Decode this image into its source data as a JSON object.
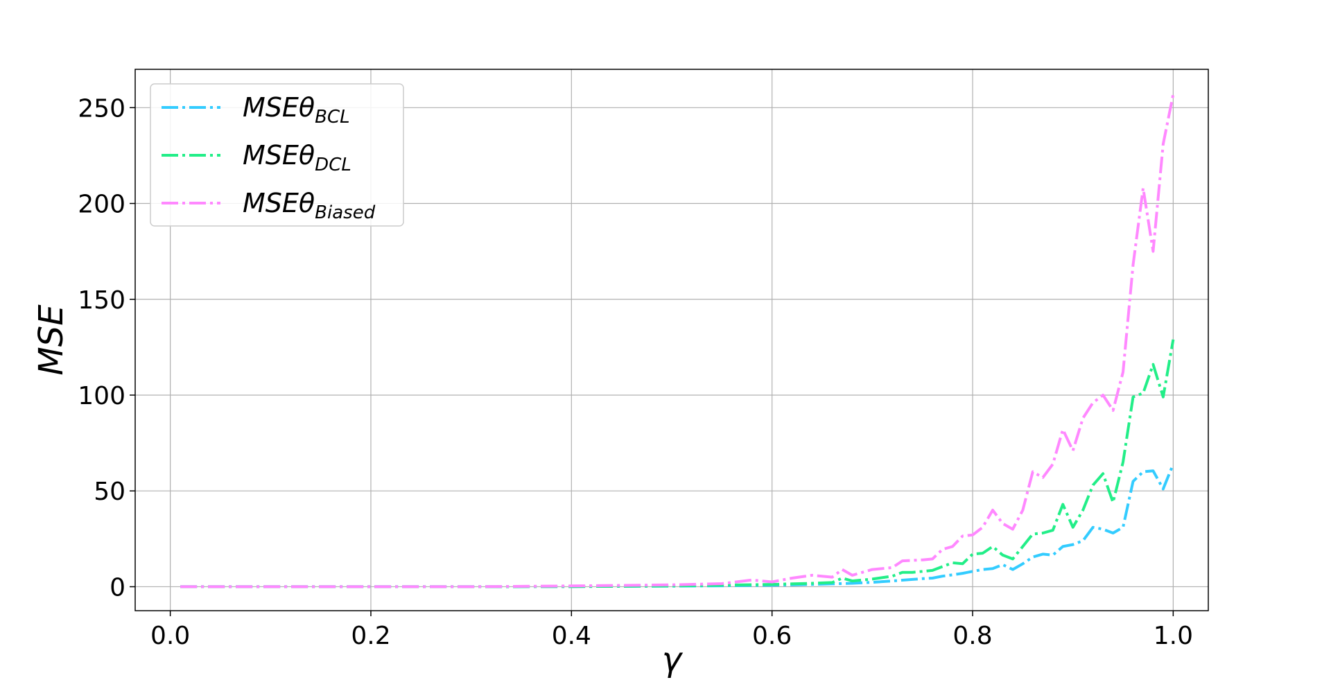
{
  "chart_data": {
    "type": "line",
    "title": "",
    "xlabel": "γ",
    "ylabel": "MSE",
    "xlim": [
      -0.035,
      1.035
    ],
    "ylim": [
      -12.5,
      270
    ],
    "xticks": [
      0.0,
      0.2,
      0.4,
      0.6,
      0.8,
      1.0
    ],
    "xtick_labels": [
      "0.0",
      "0.2",
      "0.4",
      "0.6",
      "0.8",
      "1.0"
    ],
    "yticks": [
      0,
      50,
      100,
      150,
      200,
      250
    ],
    "ytick_labels": [
      "0",
      "50",
      "100",
      "150",
      "200",
      "250"
    ],
    "grid": true,
    "legend_position": "top-left",
    "line_style": "dash-dot",
    "series": [
      {
        "name": "MSEθ",
        "subscript": "BCL",
        "color": "#33ccff",
        "points": [
          [
            0.01,
            0
          ],
          [
            0.1,
            0
          ],
          [
            0.2,
            0
          ],
          [
            0.3,
            0
          ],
          [
            0.4,
            0.1
          ],
          [
            0.45,
            0.2
          ],
          [
            0.5,
            0.3
          ],
          [
            0.55,
            0.5
          ],
          [
            0.6,
            0.8
          ],
          [
            0.62,
            1.0
          ],
          [
            0.64,
            1.2
          ],
          [
            0.66,
            1.5
          ],
          [
            0.68,
            1.8
          ],
          [
            0.7,
            2.3
          ],
          [
            0.72,
            3.0
          ],
          [
            0.74,
            3.8
          ],
          [
            0.75,
            4.2
          ],
          [
            0.76,
            4.5
          ],
          [
            0.77,
            5.5
          ],
          [
            0.78,
            6.2
          ],
          [
            0.79,
            7.0
          ],
          [
            0.8,
            8.0
          ],
          [
            0.81,
            9.0
          ],
          [
            0.82,
            9.5
          ],
          [
            0.83,
            11.5
          ],
          [
            0.84,
            9.0
          ],
          [
            0.85,
            12.0
          ],
          [
            0.86,
            15.5
          ],
          [
            0.87,
            17.0
          ],
          [
            0.88,
            16.5
          ],
          [
            0.89,
            21.0
          ],
          [
            0.9,
            22.0
          ],
          [
            0.91,
            24.0
          ],
          [
            0.92,
            31.0
          ],
          [
            0.93,
            30.0
          ],
          [
            0.94,
            28.0
          ],
          [
            0.95,
            31.0
          ],
          [
            0.96,
            55.0
          ],
          [
            0.97,
            60.0
          ],
          [
            0.98,
            60.5
          ],
          [
            0.99,
            51.0
          ],
          [
            1.0,
            64.0
          ]
        ]
      },
      {
        "name": "MSEθ",
        "subscript": "DCL",
        "color": "#22ee88",
        "points": [
          [
            0.01,
            0
          ],
          [
            0.1,
            0
          ],
          [
            0.2,
            0
          ],
          [
            0.3,
            0
          ],
          [
            0.4,
            0.1
          ],
          [
            0.45,
            0.2
          ],
          [
            0.5,
            0.4
          ],
          [
            0.55,
            0.8
          ],
          [
            0.6,
            1.2
          ],
          [
            0.62,
            1.5
          ],
          [
            0.64,
            1.8
          ],
          [
            0.66,
            2.2
          ],
          [
            0.67,
            4.5
          ],
          [
            0.68,
            3.0
          ],
          [
            0.7,
            4.0
          ],
          [
            0.72,
            5.5
          ],
          [
            0.73,
            7.5
          ],
          [
            0.74,
            7.5
          ],
          [
            0.75,
            8.0
          ],
          [
            0.76,
            8.5
          ],
          [
            0.77,
            10.5
          ],
          [
            0.78,
            12.5
          ],
          [
            0.79,
            12.0
          ],
          [
            0.8,
            17.0
          ],
          [
            0.81,
            17.5
          ],
          [
            0.82,
            21.0
          ],
          [
            0.83,
            16.5
          ],
          [
            0.84,
            14.5
          ],
          [
            0.85,
            21.0
          ],
          [
            0.86,
            27.5
          ],
          [
            0.87,
            28.0
          ],
          [
            0.88,
            29.5
          ],
          [
            0.89,
            43.0
          ],
          [
            0.9,
            31.0
          ],
          [
            0.91,
            40.0
          ],
          [
            0.92,
            53.0
          ],
          [
            0.93,
            59.0
          ],
          [
            0.94,
            44.0
          ],
          [
            0.95,
            65.0
          ],
          [
            0.96,
            99.0
          ],
          [
            0.97,
            101.0
          ],
          [
            0.98,
            116.0
          ],
          [
            0.99,
            99.0
          ],
          [
            1.0,
            129.0
          ]
        ]
      },
      {
        "name": "MSEθ",
        "subscript": "Biased",
        "color": "#ff88ff",
        "points": [
          [
            0.01,
            0
          ],
          [
            0.1,
            0
          ],
          [
            0.2,
            0
          ],
          [
            0.3,
            0
          ],
          [
            0.35,
            0.2
          ],
          [
            0.4,
            0.4
          ],
          [
            0.45,
            0.7
          ],
          [
            0.5,
            1.0
          ],
          [
            0.55,
            1.6
          ],
          [
            0.58,
            3.5
          ],
          [
            0.6,
            2.5
          ],
          [
            0.62,
            4.5
          ],
          [
            0.64,
            6.0
          ],
          [
            0.66,
            5.0
          ],
          [
            0.67,
            9.0
          ],
          [
            0.68,
            6.0
          ],
          [
            0.7,
            9.0
          ],
          [
            0.72,
            10.0
          ],
          [
            0.73,
            13.5
          ],
          [
            0.75,
            14.0
          ],
          [
            0.76,
            14.5
          ],
          [
            0.77,
            19.5
          ],
          [
            0.78,
            21.0
          ],
          [
            0.79,
            26.5
          ],
          [
            0.8,
            27.0
          ],
          [
            0.81,
            31.0
          ],
          [
            0.82,
            40.0
          ],
          [
            0.83,
            33.0
          ],
          [
            0.84,
            30.0
          ],
          [
            0.85,
            40.0
          ],
          [
            0.86,
            60.0
          ],
          [
            0.87,
            57.0
          ],
          [
            0.88,
            64.0
          ],
          [
            0.89,
            82.0
          ],
          [
            0.9,
            71.0
          ],
          [
            0.91,
            88.0
          ],
          [
            0.92,
            96.0
          ],
          [
            0.93,
            100.0
          ],
          [
            0.94,
            92.0
          ],
          [
            0.95,
            112.0
          ],
          [
            0.96,
            168.0
          ],
          [
            0.97,
            208.0
          ],
          [
            0.98,
            175.0
          ],
          [
            0.99,
            231.0
          ],
          [
            1.0,
            257.0
          ]
        ]
      }
    ]
  }
}
